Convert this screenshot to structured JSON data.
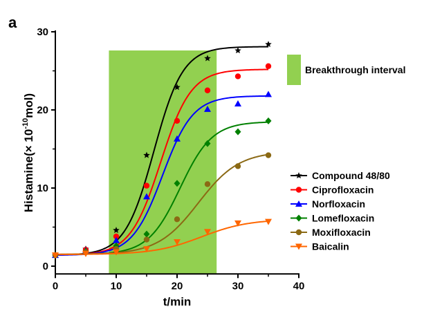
{
  "panel_label": "a",
  "chart_data": {
    "type": "line",
    "title": "",
    "xlabel": "t/min",
    "ylabel_prefix": "Histamine(× 10",
    "ylabel_exp": "-10",
    "ylabel_suffix": "mol)",
    "xlim": [
      0,
      40
    ],
    "ylim": [
      -1,
      30
    ],
    "x_ticks": [
      0,
      10,
      20,
      30,
      40
    ],
    "y_ticks": [
      0,
      10,
      20,
      30
    ],
    "grid": false,
    "legend_position": "right",
    "band": {
      "x_start": 8.8,
      "x_end": 26.5,
      "label": "Breakthrough interval",
      "color": "#92d050"
    },
    "series": [
      {
        "name": "Compound 48/80",
        "color": "#000000",
        "marker": "star",
        "x": [
          0,
          5,
          10,
          15,
          20,
          25,
          30,
          35
        ],
        "y": [
          1.4,
          2.2,
          4.6,
          14.2,
          22.9,
          26.6,
          27.6,
          28.4
        ],
        "fit": {
          "bottom": 1.4,
          "top": 28.1,
          "x0": 16.2,
          "k": 0.42
        }
      },
      {
        "name": "Ciprofloxacin",
        "color": "#ff0000",
        "marker": "circle",
        "x": [
          0,
          5,
          10,
          15,
          20,
          25,
          30,
          35
        ],
        "y": [
          1.4,
          2.1,
          3.8,
          10.3,
          18.6,
          22.5,
          24.3,
          25.6
        ],
        "fit": {
          "bottom": 1.4,
          "top": 25.2,
          "x0": 17.3,
          "k": 0.4
        }
      },
      {
        "name": "Norfloxacin",
        "color": "#0000ff",
        "marker": "triangle-up",
        "x": [
          0,
          5,
          10,
          15,
          20,
          25,
          30,
          35
        ],
        "y": [
          1.4,
          2.0,
          3.3,
          8.9,
          16.3,
          20.1,
          20.8,
          22.0
        ],
        "fit": {
          "bottom": 1.4,
          "top": 21.8,
          "x0": 17.6,
          "k": 0.4
        }
      },
      {
        "name": "Lomefloxacin",
        "color": "#008000",
        "marker": "diamond",
        "x": [
          0,
          5,
          10,
          15,
          20,
          25,
          30,
          35
        ],
        "y": [
          1.4,
          1.9,
          2.6,
          4.1,
          10.6,
          15.7,
          17.2,
          18.6
        ],
        "fit": {
          "bottom": 1.5,
          "top": 18.5,
          "x0": 20.5,
          "k": 0.38
        }
      },
      {
        "name": "Moxifloxacin",
        "color": "#8b6914",
        "marker": "circle",
        "x": [
          0,
          5,
          10,
          15,
          20,
          25,
          30,
          35
        ],
        "y": [
          1.4,
          1.8,
          2.2,
          3.4,
          6.0,
          10.5,
          12.8,
          14.2
        ],
        "fit": {
          "bottom": 1.5,
          "top": 14.7,
          "x0": 23.5,
          "k": 0.3
        }
      },
      {
        "name": "Baicalin",
        "color": "#ff6600",
        "marker": "triangle-down",
        "x": [
          0,
          5,
          10,
          15,
          20,
          25,
          30,
          35
        ],
        "y": [
          1.4,
          1.6,
          1.8,
          2.2,
          3.1,
          4.4,
          5.5,
          5.7
        ],
        "fit": {
          "bottom": 1.5,
          "top": 6.0,
          "x0": 24.0,
          "k": 0.26
        }
      }
    ]
  }
}
